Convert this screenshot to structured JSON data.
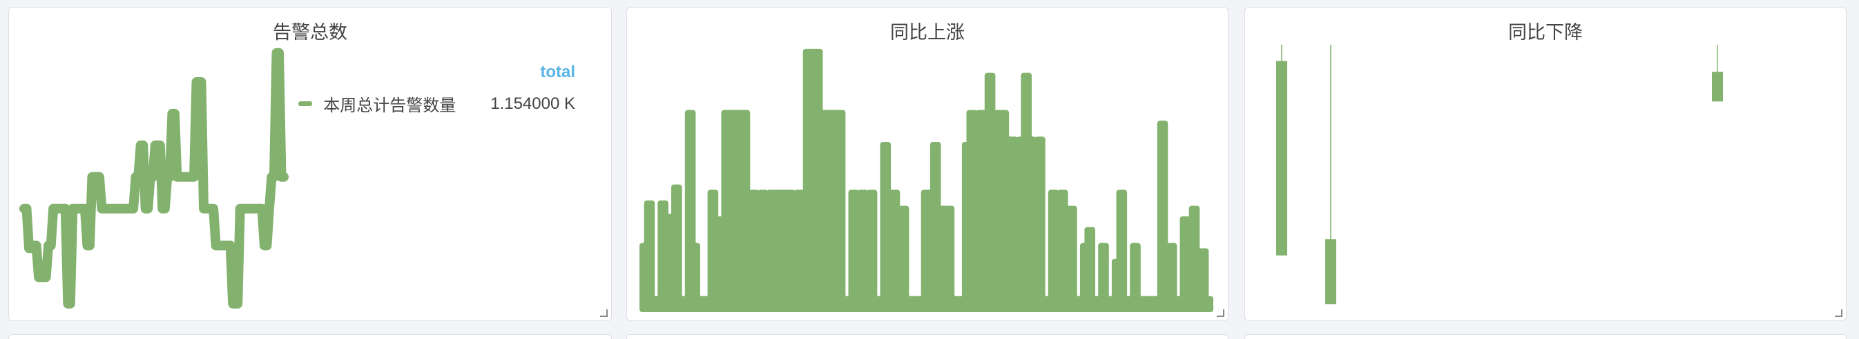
{
  "panels": [
    {
      "title": "告警总数"
    },
    {
      "title": "同比上涨"
    },
    {
      "title": "同比下降"
    }
  ],
  "legend": {
    "title": "total",
    "series_name": "本周总计告警数量",
    "value_text": "1.154000 K"
  },
  "colors": {
    "series": "#82b26e",
    "legend_title": "#5ab4e5"
  },
  "chart_data": [
    {
      "type": "line",
      "title": "告警总数",
      "ylim": [
        0,
        100
      ],
      "series": [
        {
          "name": "本周总计告警数量",
          "values": [
            40,
            40,
            25,
            25,
            26,
            26,
            14,
            14,
            14,
            14,
            26,
            26,
            40,
            40,
            40,
            40,
            40,
            40,
            4,
            4,
            40,
            40,
            40,
            40,
            40,
            40,
            26,
            26,
            52,
            52,
            52,
            52,
            40,
            40,
            40,
            40,
            40,
            40,
            40,
            40,
            40,
            40,
            40,
            40,
            40,
            40,
            52,
            52,
            64,
            64,
            40,
            40,
            52,
            52,
            64,
            64,
            64,
            40,
            40,
            52,
            52,
            76,
            76,
            52,
            52,
            52,
            52,
            52,
            52,
            52,
            52,
            88,
            88,
            88,
            40,
            40,
            40,
            40,
            40,
            26,
            26,
            26,
            26,
            26,
            26,
            26,
            4,
            4,
            4,
            40,
            40,
            40,
            40,
            40,
            40,
            40,
            40,
            40,
            40,
            26,
            26,
            40,
            52,
            52,
            99,
            99,
            52,
            52
          ]
        }
      ]
    },
    {
      "type": "bar",
      "title": "同比上涨",
      "ylim": [
        0,
        100
      ],
      "values": [
        26,
        42,
        6,
        6,
        42,
        6,
        37,
        48,
        6,
        6,
        76,
        26,
        6,
        6,
        6,
        46,
        6,
        36,
        76,
        76,
        76,
        76,
        76,
        6,
        46,
        6,
        46,
        6,
        46,
        46,
        46,
        46,
        46,
        6,
        46,
        6,
        99,
        99,
        99,
        76,
        76,
        76,
        76,
        76,
        6,
        6,
        46,
        6,
        46,
        6,
        46,
        6,
        6,
        64,
        6,
        46,
        6,
        40,
        6,
        6,
        6,
        6,
        46,
        46,
        64,
        40,
        40,
        40,
        6,
        6,
        6,
        64,
        76,
        60,
        76,
        76,
        90,
        6,
        76,
        76,
        66,
        66,
        6,
        66,
        90,
        66,
        40,
        66,
        6,
        6,
        46,
        6,
        46,
        26,
        40,
        6,
        6,
        26,
        32,
        6,
        6,
        26,
        6,
        6,
        20,
        46,
        6,
        6,
        26,
        6,
        6,
        6,
        6,
        6,
        72,
        6,
        26,
        6,
        6,
        36,
        26,
        40,
        6,
        24,
        6
      ]
    },
    {
      "type": "bar",
      "title": "同比下降",
      "ylim": [
        0,
        100
      ],
      "bars": [
        {
          "low": 22,
          "high": 94
        },
        {
          "low": 4,
          "high": 28
        },
        {
          "low": 79,
          "high": 90
        }
      ]
    }
  ]
}
